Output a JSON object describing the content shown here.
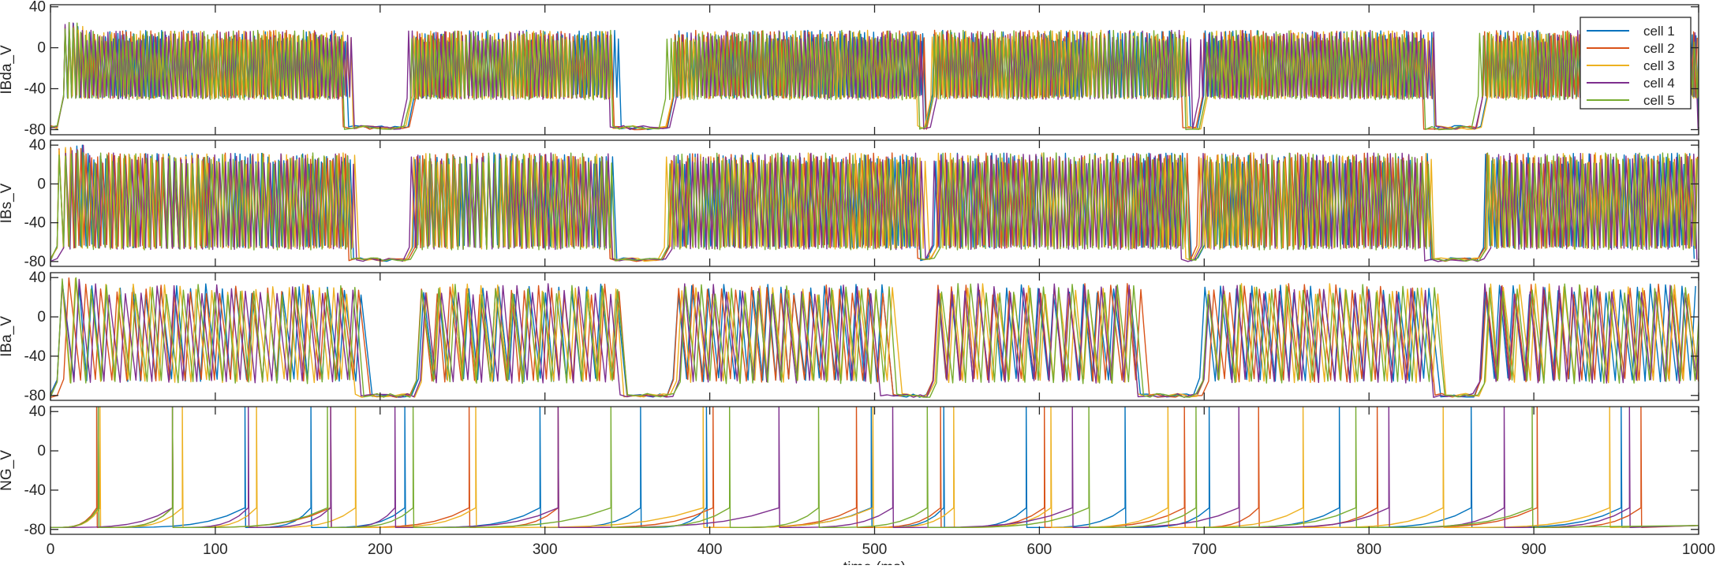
{
  "chart_data": {
    "type": "line",
    "xlabel": "time (ms)",
    "xlim": [
      0,
      1000
    ],
    "xticks": [
      0,
      100,
      200,
      300,
      400,
      500,
      600,
      700,
      800,
      900,
      1000
    ],
    "legend": {
      "placement": "top-right of first panel",
      "entries": [
        "cell 1",
        "cell 2",
        "cell 3",
        "cell 4",
        "cell 5"
      ]
    },
    "series_colors": [
      "#0072BD",
      "#D95319",
      "#EDB120",
      "#7E2F8E",
      "#77AC30"
    ],
    "grid": false,
    "panels": [
      {
        "ylabel": "IBda_V",
        "ylim": [
          -85,
          42
        ],
        "yticks": [
          -80,
          -40,
          0,
          40
        ],
        "tonic": {
          "trough": -45,
          "peak": 25,
          "interval_ms": 2.5
        },
        "active_windows_ms": [
          [
            5,
            180
          ],
          [
            218,
            340
          ],
          [
            374,
            528
          ],
          [
            535,
            688
          ],
          [
            697,
            835
          ],
          [
            868,
            1000
          ]
        ],
        "silent_level": -80
      },
      {
        "ylabel": "IBs_V",
        "ylim": [
          -85,
          45
        ],
        "yticks": [
          -80,
          -40,
          0,
          40
        ],
        "tonic": {
          "trough": -62,
          "peak": 40,
          "interval_ms": 3.5
        },
        "active_windows_ms": [
          [
            5,
            180
          ],
          [
            218,
            340
          ],
          [
            374,
            528
          ],
          [
            535,
            688
          ],
          [
            697,
            835
          ],
          [
            868,
            1000
          ]
        ],
        "silent_level": -80
      },
      {
        "ylabel": "IBa_V",
        "ylim": [
          -85,
          45
        ],
        "yticks": [
          -80,
          -40,
          0,
          40
        ],
        "tonic": {
          "trough": -62,
          "peak": 42,
          "interval_ms": 9
        },
        "active_windows_ms": [
          [
            5,
            185
          ],
          [
            222,
            345
          ],
          [
            378,
            505
          ],
          [
            535,
            660
          ],
          [
            697,
            840
          ],
          [
            868,
            1000
          ]
        ],
        "silent_level": -82
      },
      {
        "ylabel": "NG_V",
        "ylim": [
          -85,
          45
        ],
        "yticks": [
          -80,
          -40,
          0,
          40
        ],
        "spike_peak": 45,
        "rest_level": -78,
        "spike_times_ms": [
          [
            29,
            118,
            158,
            215,
            297,
            358,
            398,
            498,
            542,
            592,
            652,
            703,
            782,
            862,
            953
          ],
          [
            28,
            74,
            170,
            254,
            308,
            402,
            489,
            540,
            603,
            688,
            733,
            805,
            902,
            965
          ],
          [
            30,
            80,
            125,
            185,
            258,
            396,
            499,
            548,
            607,
            678,
            760,
            845,
            946
          ],
          [
            74,
            120,
            170,
            209,
            308,
            442,
            511,
            620,
            721,
            812,
            882,
            958
          ],
          [
            29,
            74,
            168,
            220,
            340,
            412,
            466,
            532,
            630,
            695,
            792,
            899
          ]
        ]
      }
    ]
  }
}
